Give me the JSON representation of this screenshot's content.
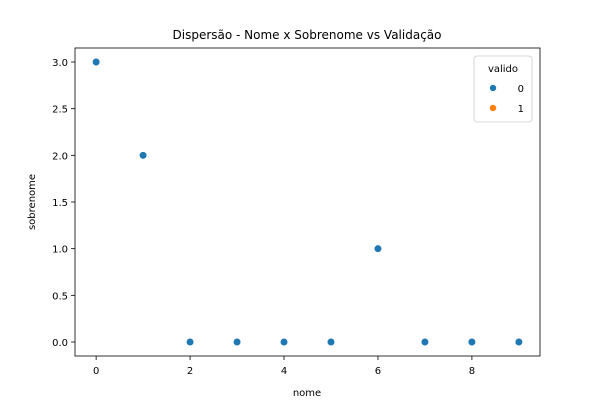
{
  "chart_data": {
    "type": "scatter",
    "title": "Dispersão - Nome x Sobrenome vs Validação",
    "xlabel": "nome",
    "ylabel": "sobrenome",
    "xlim": [
      -0.45,
      9.45
    ],
    "ylim": [
      -0.15,
      3.15
    ],
    "xticks": [
      0,
      2,
      4,
      6,
      8
    ],
    "yticks": [
      0.0,
      0.5,
      1.0,
      1.5,
      2.0,
      2.5,
      3.0
    ],
    "xtick_labels": [
      "0",
      "2",
      "4",
      "6",
      "8"
    ],
    "ytick_labels": [
      "0.0",
      "0.5",
      "1.0",
      "1.5",
      "2.0",
      "2.5",
      "3.0"
    ],
    "grid": false,
    "legend": {
      "title": "valido",
      "placement": "top-right",
      "entries": [
        {
          "label": "0",
          "color": "#1f77b4"
        },
        {
          "label": "1",
          "color": "#ff7f0e"
        }
      ]
    },
    "series": [
      {
        "name": "0",
        "color": "#1f77b4",
        "points": [
          {
            "x": 0,
            "y": 3.0
          },
          {
            "x": 1,
            "y": 2.0
          },
          {
            "x": 2,
            "y": 0.0
          },
          {
            "x": 3,
            "y": 0.0
          },
          {
            "x": 4,
            "y": 0.0
          },
          {
            "x": 5,
            "y": 0.0
          },
          {
            "x": 6,
            "y": 1.0
          },
          {
            "x": 7,
            "y": 0.0
          },
          {
            "x": 8,
            "y": 0.0
          },
          {
            "x": 9,
            "y": 0.0
          }
        ]
      },
      {
        "name": "1",
        "color": "#ff7f0e",
        "points": []
      }
    ]
  }
}
